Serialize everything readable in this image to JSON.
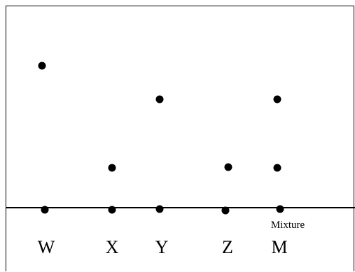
{
  "diagram": {
    "mixture_note": "Mixture",
    "lanes": [
      {
        "label": "W",
        "spots": [
          "origin",
          "high"
        ]
      },
      {
        "label": "X",
        "spots": [
          "origin",
          "low"
        ]
      },
      {
        "label": "Y",
        "spots": [
          "origin",
          "middle"
        ]
      },
      {
        "label": "Z",
        "spots": [
          "origin",
          "low"
        ]
      },
      {
        "label": "M",
        "spots": [
          "origin",
          "low",
          "middle"
        ]
      }
    ]
  }
}
